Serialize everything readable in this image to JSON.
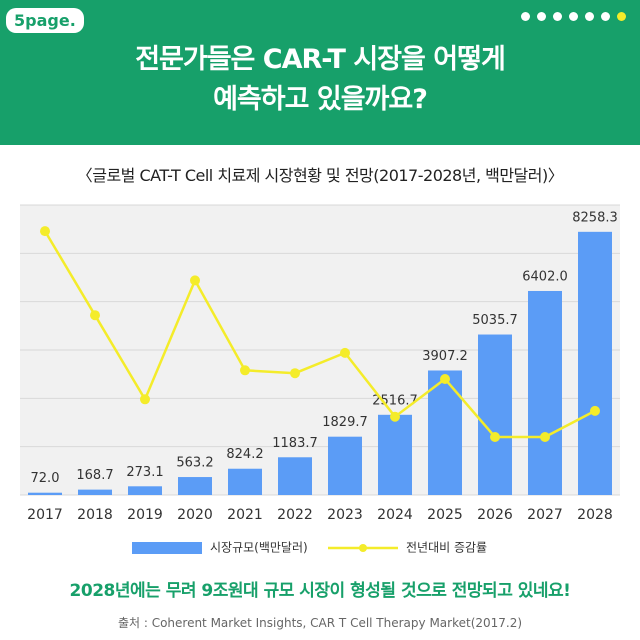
{
  "header": {
    "logo": "5page.",
    "title_lines": [
      "전문가들은 CAR-T 시장을 어떻게",
      "예측하고 있을까요?"
    ]
  },
  "chart_data": {
    "type": "bar",
    "title": "〈글로벌 CAT-T Cell 치료제 시장현황 및 전망(2017-2028년, 백만달러)〉",
    "categories": [
      "2017",
      "2018",
      "2019",
      "2020",
      "2021",
      "2022",
      "2023",
      "2024",
      "2025",
      "2026",
      "2027",
      "2028"
    ],
    "series": [
      {
        "name": "시장규모(백만달러)",
        "type": "bar",
        "color": "#5b9cf6",
        "values": [
          72.0,
          168.7,
          273.1,
          563.2,
          824.2,
          1183.7,
          1829.7,
          2516.7,
          3907.2,
          5035.7,
          6402.0,
          8258.3
        ],
        "value_labels": [
          "72.0",
          "168.7",
          "273.1",
          "563.2",
          "824.2",
          "1183.7",
          "1829.7",
          "2516.7",
          "3907.2",
          "5035.7",
          "6402.0",
          "8258.3"
        ]
      },
      {
        "name": "전년대비 증감률",
        "type": "line",
        "axis": "y2",
        "color": "#f4ec2a",
        "values": [
          91,
          62,
          33,
          74,
          43,
          42,
          49,
          27,
          40,
          20,
          20,
          29
        ]
      }
    ],
    "ylim": [
      0,
      9100
    ],
    "y2lim": [
      0,
      100
    ],
    "grid": true
  },
  "footer": {
    "message": "2028년에는 무려 9조원대 규모 시장이 형성될 것으로 전망되고 있네요!",
    "source": "출처 : Coherent Market Insights, CAR T Cell Therapy Market(2017.2)"
  }
}
